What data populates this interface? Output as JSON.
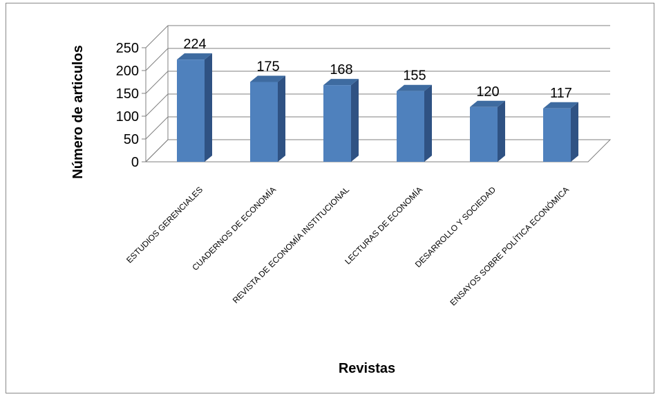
{
  "chart_data": {
    "type": "bar",
    "style": "3d-column",
    "categories": [
      "ESTUDIOS GERENCIALES",
      "CUADERNOS DE ECONOMÍA",
      "REVISTA DE ECONOMÍA INSTITUCIONAL",
      "LECTURAS DE ECONOMÍA",
      "DESARROLLO Y SOCIEDAD",
      "ENSAYOS SOBRE POLÍTICA ECONÓMICA"
    ],
    "values": [
      224,
      175,
      168,
      155,
      120,
      117
    ],
    "data_labels": [
      "224",
      "175",
      "168",
      "155",
      "120",
      "117"
    ],
    "title": "",
    "xlabel": "Revistas",
    "ylabel": "Número de articulos",
    "ylim": [
      0,
      250
    ],
    "yticks": [
      0,
      50,
      100,
      150,
      200,
      250
    ],
    "ytick_labels": [
      "0",
      "50",
      "100",
      "150",
      "200",
      "250"
    ],
    "grid": true,
    "legend": "none",
    "colors": {
      "bar_front": "#4f81bd",
      "bar_side": "#2f5283",
      "bar_top": "#3e6ba0",
      "gridline": "#7f7f7f"
    }
  }
}
